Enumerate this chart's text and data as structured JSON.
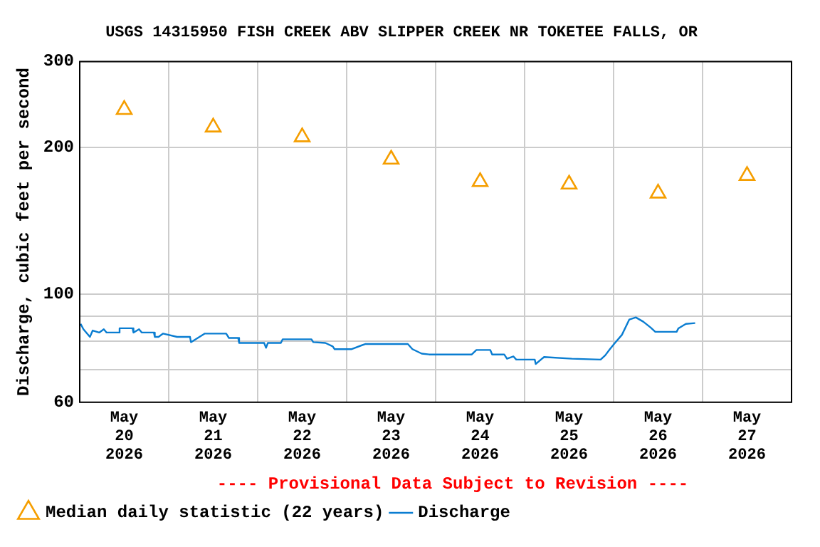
{
  "chart_data": {
    "type": "line",
    "title": "USGS 14315950 FISH CREEK ABV SLIPPER CREEK NR TOKETEE FALLS, OR",
    "ylabel": "Discharge, cubic feet per second",
    "annotations": [
      "---- Provisional Data Subject to Revision ----"
    ],
    "xlim": [
      "2026-05-20T00:00",
      "2026-05-28T00:00"
    ],
    "xticks": [
      {
        "value": "2026-05-20T00:00",
        "label": null
      },
      {
        "value": "2026-05-20T12:00",
        "label": "May 20 2026"
      },
      {
        "value": "2026-05-21T00:00",
        "label": null
      },
      {
        "value": "2026-05-21T12:00",
        "label": "May 21 2026"
      },
      {
        "value": "2026-05-22T00:00",
        "label": null
      },
      {
        "value": "2026-05-22T12:00",
        "label": "May 22 2026"
      },
      {
        "value": "2026-05-23T00:00",
        "label": null
      },
      {
        "value": "2026-05-23T12:00",
        "label": "May 23 2026"
      },
      {
        "value": "2026-05-24T00:00",
        "label": null
      },
      {
        "value": "2026-05-24T12:00",
        "label": "May 24 2026"
      },
      {
        "value": "2026-05-25T00:00",
        "label": null
      },
      {
        "value": "2026-05-25T12:00",
        "label": "May 25 2026"
      },
      {
        "value": "2026-05-26T00:00",
        "label": null
      },
      {
        "value": "2026-05-26T12:00",
        "label": "May 26 2026"
      },
      {
        "value": "2026-05-27T00:00",
        "label": null
      },
      {
        "value": "2026-05-27T12:00",
        "label": "May 27 2026"
      },
      {
        "value": "2026-05-28T00:00",
        "label": null
      }
    ],
    "ylim": [
      60,
      300
    ],
    "yticks": [
      60,
      {
        "value": 70,
        "label": null
      },
      {
        "value": 80,
        "label": null
      },
      {
        "value": 90,
        "label": null
      },
      100,
      200,
      300
    ],
    "log": "y",
    "grid": true,
    "legend": "bottom",
    "series": [
      {
        "name": "Median daily statistic (22 years)",
        "type": "scatter",
        "marker": "triangle",
        "color": "#f59e00",
        "x": [
          "2026-05-20T12:00",
          "2026-05-21T12:00",
          "2026-05-22T12:00",
          "2026-05-23T12:00",
          "2026-05-24T12:00",
          "2026-05-25T12:00",
          "2026-05-26T12:00",
          "2026-05-27T12:00"
        ],
        "values": [
          239,
          220,
          210,
          189,
          170,
          168,
          161,
          175
        ]
      },
      {
        "name": "Discharge",
        "type": "line",
        "line_style": "solid",
        "color": "#0a7dd1",
        "x": [
          "2026-05-20T00:15",
          "2026-05-20T01:00",
          "2026-05-20T02:45",
          "2026-05-20T03:30",
          "2026-05-20T05:15",
          "2026-05-20T06:30",
          "2026-05-20T07:15",
          "2026-05-20T10:30",
          "2026-05-20T10:45",
          "2026-05-20T14:15",
          "2026-05-20T14:30",
          "2026-05-20T16:00",
          "2026-05-20T16:45",
          "2026-05-20T20:00",
          "2026-05-20T20:15",
          "2026-05-20T21:15",
          "2026-05-20T22:30",
          "2026-05-21T02:15",
          "2026-05-21T05:45",
          "2026-05-21T06:00",
          "2026-05-21T09:45",
          "2026-05-21T15:30",
          "2026-05-21T16:15",
          "2026-05-21T18:45",
          "2026-05-21T19:00",
          "2026-05-22T01:45",
          "2026-05-22T02:15",
          "2026-05-22T02:45",
          "2026-05-22T06:15",
          "2026-05-22T06:45",
          "2026-05-22T14:30",
          "2026-05-22T15:00",
          "2026-05-22T18:15",
          "2026-05-22T20:15",
          "2026-05-22T20:45",
          "2026-05-23T01:15",
          "2026-05-23T05:00",
          "2026-05-23T16:30",
          "2026-05-23T17:45",
          "2026-05-23T20:15",
          "2026-05-23T22:15",
          "2026-05-24T09:45",
          "2026-05-24T11:00",
          "2026-05-24T14:45",
          "2026-05-24T15:15",
          "2026-05-24T18:30",
          "2026-05-24T19:15",
          "2026-05-24T21:00",
          "2026-05-24T21:45",
          "2026-05-25T02:45",
          "2026-05-25T03:00",
          "2026-05-25T05:15",
          "2026-05-25T12:45",
          "2026-05-25T20:30",
          "2026-05-25T21:45",
          "2026-05-25T23:00",
          "2026-05-26T00:15",
          "2026-05-26T02:15",
          "2026-05-26T04:15",
          "2026-05-26T06:00",
          "2026-05-26T08:00",
          "2026-05-26T10:00",
          "2026-05-26T11:15",
          "2026-05-26T17:00",
          "2026-05-26T17:30",
          "2026-05-26T19:30",
          "2026-05-26T22:00"
        ],
        "values": [
          86.9,
          84.7,
          81.7,
          84.2,
          83.4,
          84.7,
          83.4,
          83.4,
          85.1,
          85.1,
          83.4,
          84.7,
          83.4,
          83.4,
          81.7,
          81.7,
          83.0,
          81.7,
          81.7,
          79.7,
          83.0,
          83.0,
          81.3,
          81.3,
          79.4,
          79.4,
          77.6,
          79.4,
          79.4,
          80.8,
          80.8,
          79.7,
          79.4,
          78.1,
          77.1,
          77.1,
          79.0,
          79.0,
          77.1,
          75.5,
          75.2,
          75.2,
          76.8,
          76.8,
          75.2,
          75.2,
          73.7,
          74.5,
          73.4,
          73.4,
          71.9,
          74.3,
          73.7,
          73.4,
          74.9,
          77.1,
          79.2,
          82.5,
          88.7,
          89.6,
          87.8,
          85.4,
          83.7,
          83.7,
          85.1,
          86.9,
          87.2
        ]
      }
    ]
  }
}
